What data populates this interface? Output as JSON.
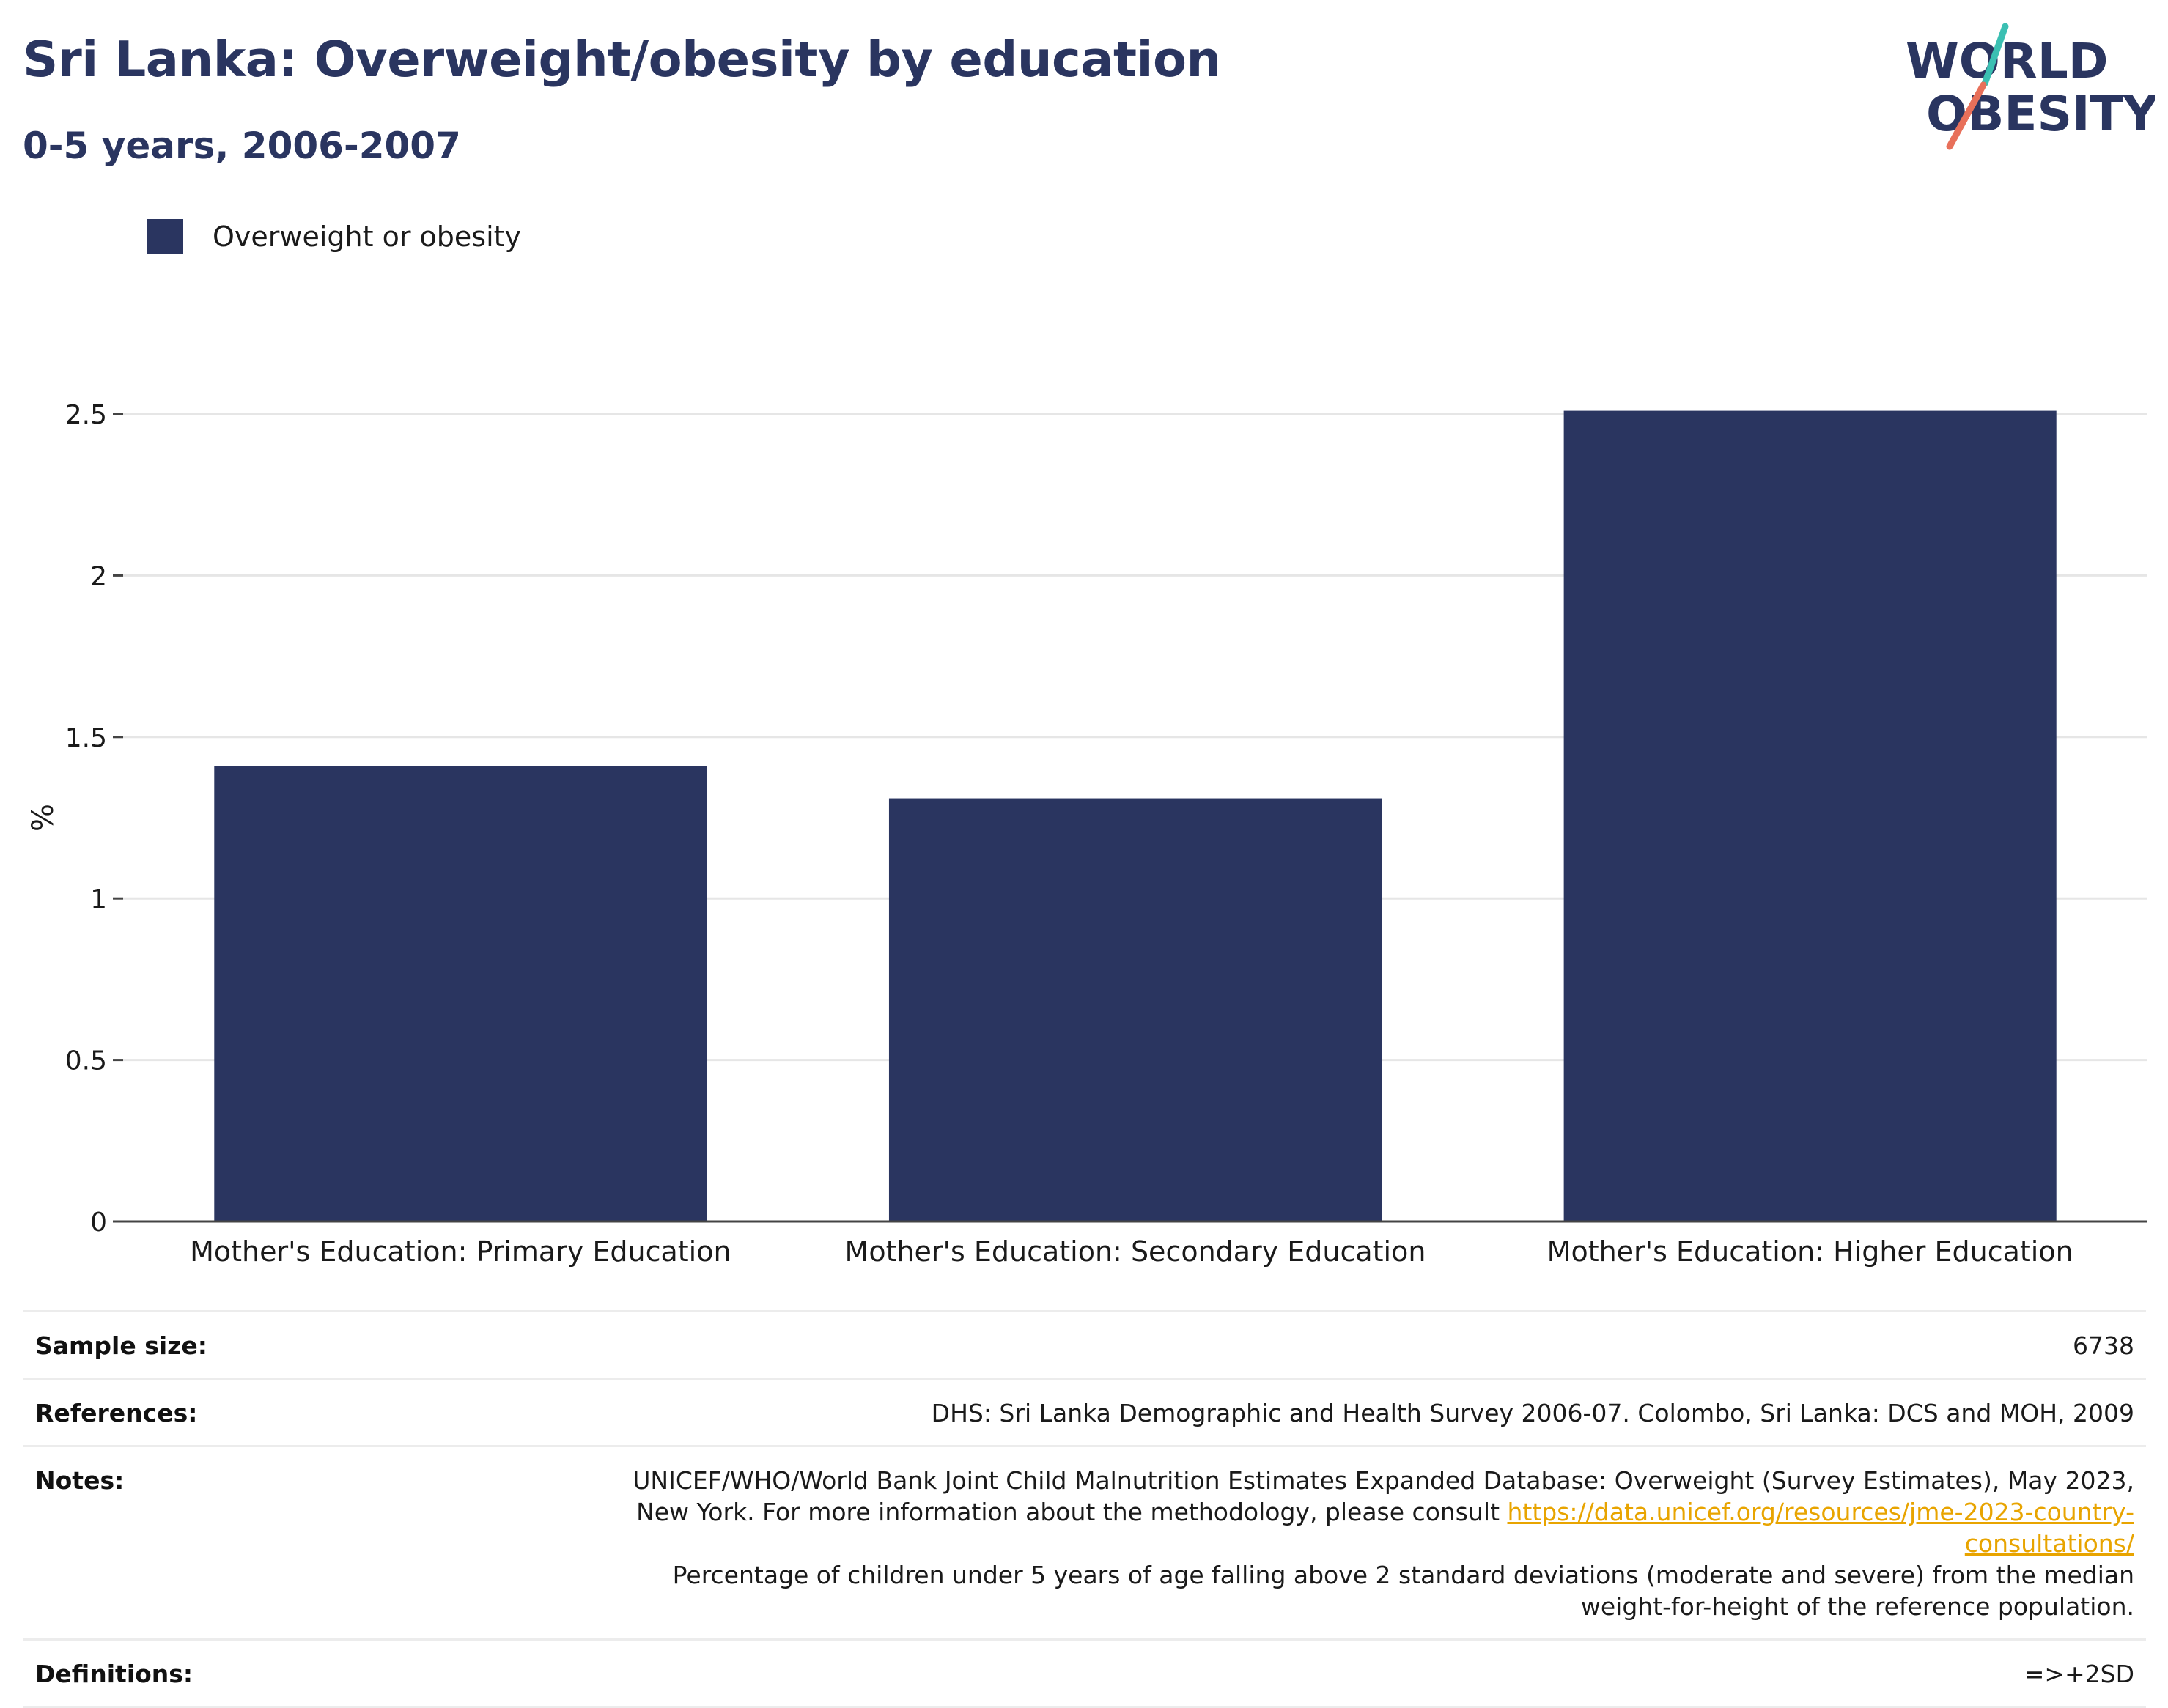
{
  "title": "Sri Lanka: Overweight/obesity by education",
  "subtitle": "0-5 years, 2006-2007",
  "logo": {
    "line1": "WORLD",
    "line2": "OBESITY",
    "accent_colors": [
      "#3bbfb2",
      "#e8705a"
    ]
  },
  "legend": {
    "label": "Overweight or obesity",
    "color": "#2a3560"
  },
  "chart_data": {
    "type": "bar",
    "categories": [
      "Mother's Education: Primary Education",
      "Mother's Education: Secondary Education",
      "Mother's Education: Higher Education"
    ],
    "series": [
      {
        "name": "Overweight or obesity",
        "values": [
          1.41,
          1.31,
          2.51
        ],
        "color": "#2a3560"
      }
    ],
    "title": "Sri Lanka: Overweight/obesity by education",
    "subtitle": "0-5 years, 2006-2007",
    "xlabel": "",
    "ylabel": "%",
    "ylim": [
      0,
      2.5
    ],
    "yticks": [
      0,
      0.5,
      1,
      1.5,
      2,
      2.5
    ],
    "ytick_labels": [
      "0",
      "0.5",
      "1",
      "1.5",
      "2",
      "2.5"
    ],
    "grid": true,
    "legend_position": "top-left"
  },
  "info": {
    "sample_size_label": "Sample size:",
    "sample_size_value": "6738",
    "references_label": "References:",
    "references_value": "DHS: Sri Lanka Demographic and Health Survey 2006-07. Colombo, Sri Lanka: DCS and MOH, 2009",
    "notes_label": "Notes:",
    "notes_text_1": "UNICEF/WHO/World Bank Joint Child Malnutrition Estimates Expanded Database: Overweight (Survey Estimates), May 2023, New York. For more information about the methodology, please consult ",
    "notes_link": "https://data.unicef.org/resources/jme-2023-country-consultations/",
    "notes_text_2": "Percentage of children under 5 years of age falling above 2 standard deviations (moderate and severe) from the median weight-for-height of the reference population.",
    "definitions_label": "Definitions:",
    "definitions_value": "=>+2SD"
  }
}
